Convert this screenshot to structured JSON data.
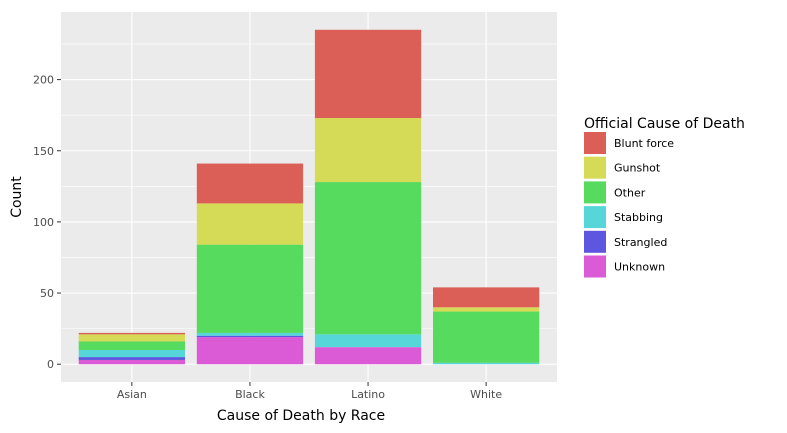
{
  "chart_data": {
    "type": "bar",
    "stacked": true,
    "xlabel": "Cause of Death by Race",
    "ylabel": "Count",
    "categories": [
      "Asian",
      "Black",
      "Latino",
      "White"
    ],
    "ylim": [
      -12.5,
      247.5
    ],
    "yticks": [
      0,
      50,
      100,
      150,
      200
    ],
    "grid": true,
    "legend": {
      "title": "Official Cause of Death",
      "position": "right"
    },
    "series": [
      {
        "name": "Unknown",
        "color": "#DB5BD7",
        "values": [
          3,
          19,
          12,
          0
        ]
      },
      {
        "name": "Strangled",
        "color": "#5D56DE",
        "values": [
          2,
          1,
          0,
          0
        ]
      },
      {
        "name": "Stabbing",
        "color": "#56D6D9",
        "values": [
          5,
          2,
          9,
          1
        ]
      },
      {
        "name": "Other",
        "color": "#56DB5E",
        "values": [
          6,
          62,
          107,
          36
        ]
      },
      {
        "name": "Gunshot",
        "color": "#D5DB56",
        "values": [
          5,
          29,
          45,
          3
        ]
      },
      {
        "name": "Blunt force",
        "color": "#DB5F57",
        "values": [
          1,
          28,
          62,
          14
        ]
      }
    ]
  }
}
